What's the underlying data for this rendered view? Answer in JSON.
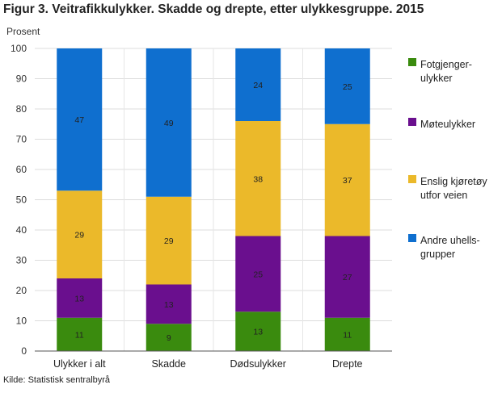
{
  "title": "Figur 3. Veitrafikkulykker. Skadde og drepte, etter ulykkesgruppe. 2015",
  "source": "Kilde: Statistisk sentralbyrå",
  "chart_data": {
    "type": "bar",
    "stacked": true,
    "ylabel": "Prosent",
    "ylim": [
      0,
      100
    ],
    "yticks": [
      0,
      10,
      20,
      30,
      40,
      50,
      60,
      70,
      80,
      90,
      100
    ],
    "grid": true,
    "legend_position": "right",
    "categories": [
      "Ulykker i alt",
      "Skadde",
      "Dødsulykker",
      "Drepte"
    ],
    "series": [
      {
        "name": "Fotgjenger-ulykker",
        "legend_lines": [
          "Fotgjenger-",
          "ulykker"
        ],
        "color": "#3a8b0e",
        "values": [
          11,
          9,
          13,
          11
        ]
      },
      {
        "name": "Møteulykker",
        "legend_lines": [
          "Møteulykker"
        ],
        "color": "#6a0f8e",
        "values": [
          13,
          13,
          25,
          27
        ]
      },
      {
        "name": "Enslig kjøretøy utfor veien",
        "legend_lines": [
          "Enslig kjøretøy",
          "utfor veien"
        ],
        "color": "#ebb92a",
        "values": [
          29,
          29,
          38,
          37
        ]
      },
      {
        "name": "Andre uhellsgrupper",
        "legend_lines": [
          "Andre uhells-",
          "grupper"
        ],
        "color": "#0f6fcf",
        "values": [
          47,
          49,
          24,
          25
        ]
      }
    ]
  }
}
